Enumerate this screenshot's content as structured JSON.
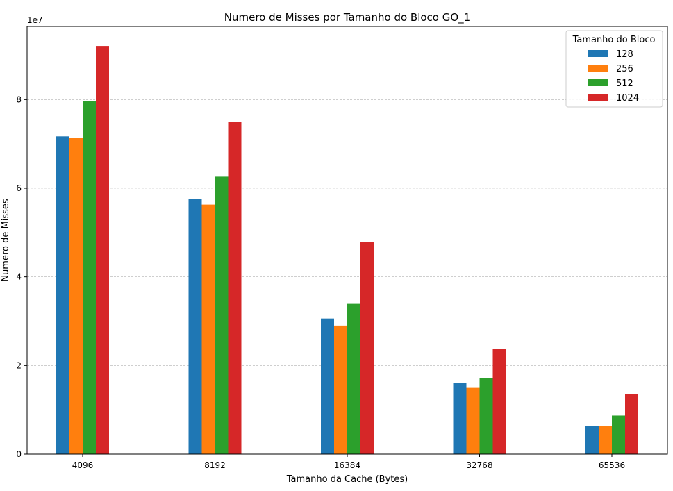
{
  "chart_data": {
    "type": "bar",
    "title": "Numero de Misses por Tamanho do Bloco GO_1",
    "xlabel": "Tamanho da Cache (Bytes)",
    "ylabel": "Numero de Misses",
    "y_offset_label": "1e7",
    "y_scale": 10000000,
    "ylim": [
      0,
      96500000
    ],
    "yticks": [
      0,
      20000000,
      40000000,
      60000000,
      80000000
    ],
    "ytick_labels": [
      "0",
      "2",
      "4",
      "6",
      "8"
    ],
    "grid": "horizontal-dashed",
    "legend_title": "Tamanho do Bloco",
    "legend_position": "top-right",
    "categories": [
      "4096",
      "8192",
      "16384",
      "32768",
      "65536"
    ],
    "series": [
      {
        "name": "128",
        "color": "#1f77b4",
        "values": [
          71700000,
          57600000,
          30600000,
          16000000,
          6300000
        ]
      },
      {
        "name": "256",
        "color": "#ff7f0e",
        "values": [
          71400000,
          56300000,
          29000000,
          15100000,
          6400000
        ]
      },
      {
        "name": "512",
        "color": "#2ca02c",
        "values": [
          79700000,
          62600000,
          33900000,
          17100000,
          8700000
        ]
      },
      {
        "name": "1024",
        "color": "#d62728",
        "values": [
          92100000,
          75000000,
          47900000,
          23700000,
          13600000
        ]
      }
    ]
  }
}
